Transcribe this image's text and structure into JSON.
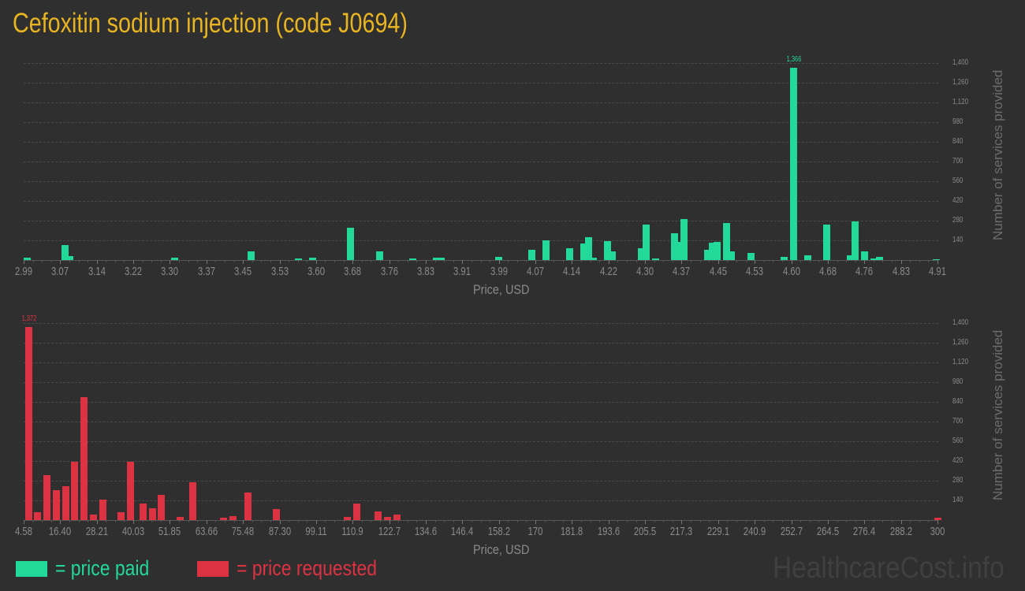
{
  "title": "Cefoxitin sodium injection (code J0694)",
  "colors": {
    "paid": "#22d99a",
    "requested": "#dd3242",
    "title": "#e8b422"
  },
  "legend": {
    "paid_label": "= price paid",
    "requested_label": "= price requested"
  },
  "brand": "HealthcareCost.info",
  "chart_data": [
    {
      "type": "bar",
      "title": "Price paid distribution",
      "xlabel": "Price, USD",
      "ylabel": "Number of services provided",
      "ylim": [
        0,
        1400
      ],
      "yticks": [
        "140",
        "280",
        "420",
        "560",
        "700",
        "840",
        "980",
        "1,120",
        "1,260",
        "1,400"
      ],
      "xticks": [
        "2.99",
        "3.07",
        "3.14",
        "3.22",
        "3.30",
        "3.37",
        "3.45",
        "3.53",
        "3.60",
        "3.68",
        "3.76",
        "3.83",
        "3.91",
        "3.99",
        "4.07",
        "4.14",
        "4.22",
        "4.30",
        "4.37",
        "4.45",
        "4.53",
        "4.60",
        "4.68",
        "4.76",
        "4.83",
        "4.91"
      ],
      "peak_label": "1,366",
      "grid": true,
      "series": [
        {
          "name": "price paid",
          "x": [
            2.99,
            3.07,
            3.08,
            3.3,
            3.46,
            3.56,
            3.59,
            3.67,
            3.73,
            3.8,
            3.85,
            3.86,
            3.98,
            4.05,
            4.08,
            4.13,
            4.16,
            4.17,
            4.18,
            4.21,
            4.22,
            4.28,
            4.29,
            4.31,
            4.35,
            4.36,
            4.37,
            4.42,
            4.43,
            4.44,
            4.46,
            4.47,
            4.51,
            4.58,
            4.6,
            4.63,
            4.67,
            4.72,
            4.73,
            4.75,
            4.77,
            4.78,
            4.9
          ],
          "values": [
            15,
            105,
            30,
            15,
            60,
            10,
            15,
            230,
            60,
            10,
            15,
            15,
            20,
            75,
            140,
            85,
            120,
            165,
            15,
            135,
            60,
            85,
            250,
            10,
            190,
            130,
            290,
            75,
            125,
            130,
            265,
            60,
            50,
            25,
            1366,
            35,
            250,
            35,
            275,
            60,
            10,
            20,
            8
          ]
        }
      ]
    },
    {
      "type": "bar",
      "title": "Price requested distribution",
      "xlabel": "Price, USD",
      "ylabel": "Number of services provided",
      "ylim": [
        0,
        1400
      ],
      "yticks": [
        "140",
        "280",
        "420",
        "560",
        "700",
        "840",
        "980",
        "1,120",
        "1,260",
        "1,400"
      ],
      "xticks": [
        "4.58",
        "16.40",
        "28.21",
        "40.03",
        "51.85",
        "63.66",
        "75.48",
        "87.30",
        "99.11",
        "110.9",
        "122.7",
        "134.6",
        "146.4",
        "158.2",
        "170",
        "181.8",
        "193.6",
        "205.5",
        "217.3",
        "229.1",
        "240.9",
        "252.7",
        "264.5",
        "276.4",
        "288.2",
        "300"
      ],
      "peak_label": "1,372",
      "grid": true,
      "series": [
        {
          "name": "price requested",
          "x": [
            5,
            8,
            11,
            14,
            17,
            20,
            23,
            26,
            29,
            35,
            38,
            42,
            45,
            48,
            54,
            58,
            68,
            71,
            76,
            85,
            108,
            111,
            118,
            121,
            124,
            299
          ],
          "values": [
            1372,
            55,
            320,
            215,
            240,
            415,
            875,
            40,
            145,
            55,
            415,
            115,
            85,
            180,
            25,
            270,
            15,
            30,
            195,
            80,
            20,
            120,
            60,
            20,
            40,
            15
          ]
        }
      ]
    }
  ]
}
